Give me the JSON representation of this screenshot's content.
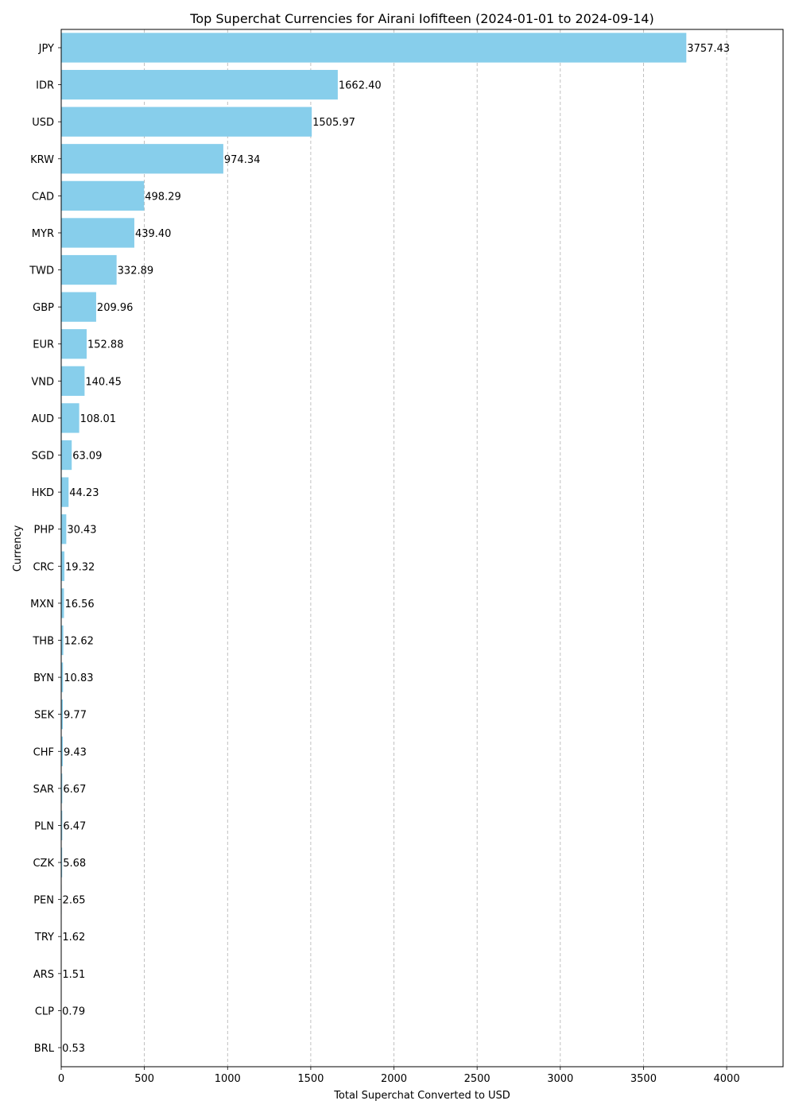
{
  "chart_data": {
    "type": "bar",
    "orientation": "horizontal",
    "title": "Top Superchat Currencies for Airani Iofifteen (2024-01-01 to 2024-09-14)",
    "xlabel": "Total Superchat Converted to USD",
    "ylabel": "Currency",
    "xlim": [
      0,
      4339
    ],
    "xticks": [
      0,
      500,
      1000,
      1500,
      2000,
      2500,
      3000,
      3500,
      4000
    ],
    "grid": "x-dashed",
    "bar_color": "#87CEEB",
    "categories": [
      "JPY",
      "IDR",
      "USD",
      "KRW",
      "CAD",
      "MYR",
      "TWD",
      "GBP",
      "EUR",
      "VND",
      "AUD",
      "SGD",
      "HKD",
      "PHP",
      "CRC",
      "MXN",
      "THB",
      "BYN",
      "SEK",
      "CHF",
      "SAR",
      "PLN",
      "CZK",
      "PEN",
      "TRY",
      "ARS",
      "CLP",
      "BRL"
    ],
    "values": [
      3757.43,
      1662.4,
      1505.97,
      974.34,
      498.29,
      439.4,
      332.89,
      209.96,
      152.88,
      140.45,
      108.01,
      63.09,
      44.23,
      30.43,
      19.32,
      16.56,
      12.62,
      10.83,
      9.77,
      9.43,
      6.67,
      6.47,
      5.68,
      2.65,
      1.62,
      1.51,
      0.79,
      0.53
    ],
    "data_labels": [
      "3757.43",
      "1662.40",
      "1505.97",
      "974.34",
      "498.29",
      "439.40",
      "332.89",
      "209.96",
      "152.88",
      "140.45",
      "108.01",
      "63.09",
      "44.23",
      "30.43",
      "19.32",
      "16.56",
      "12.62",
      "10.83",
      "9.77",
      "9.43",
      "6.67",
      "6.47",
      "5.68",
      "2.65",
      "1.62",
      "1.51",
      "0.79",
      "0.53"
    ]
  }
}
